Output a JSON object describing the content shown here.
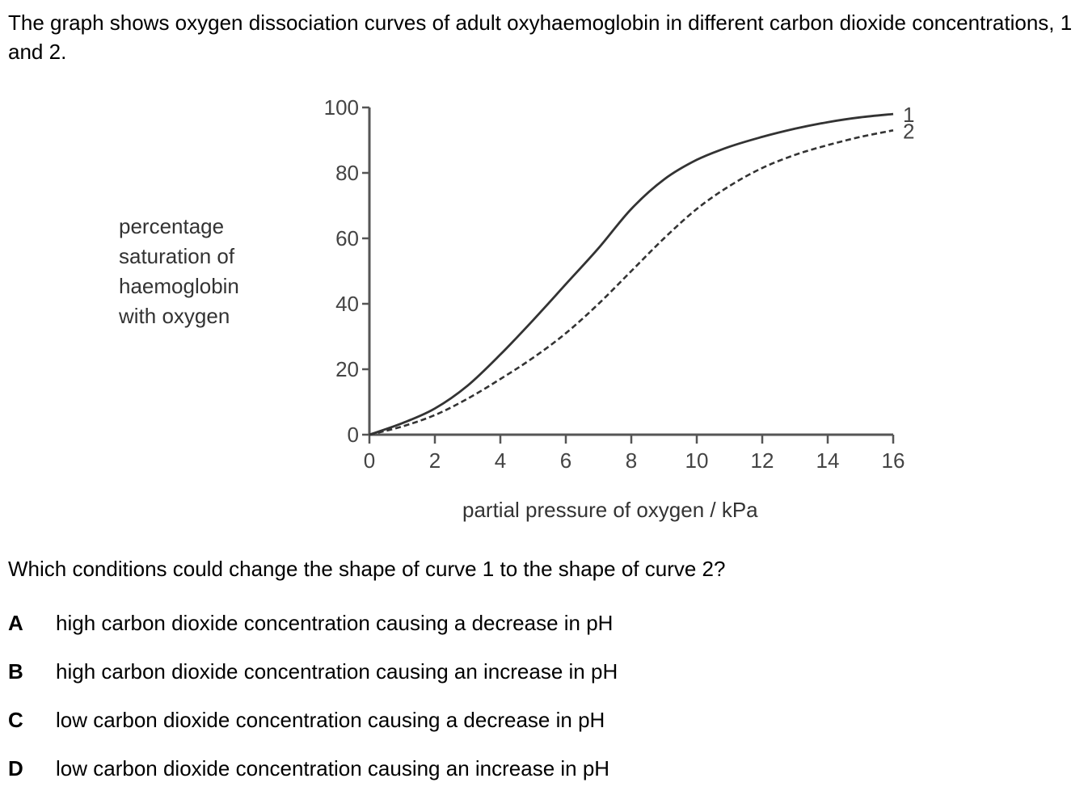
{
  "question": {
    "intro": "The graph shows oxygen dissociation curves of adult oxyhaemoglobin in different carbon dioxide concentrations, 1 and 2.",
    "prompt": "Which conditions could change the shape of curve 1 to the shape of curve 2?",
    "options": [
      {
        "letter": "A",
        "text": "high carbon dioxide concentration causing a decrease in pH"
      },
      {
        "letter": "B",
        "text": "high carbon dioxide concentration causing an increase in pH"
      },
      {
        "letter": "C",
        "text": "low carbon dioxide concentration causing a decrease in pH"
      },
      {
        "letter": "D",
        "text": "low carbon dioxide concentration causing an increase in pH"
      }
    ]
  },
  "chart_data": {
    "type": "line",
    "title": "",
    "xlabel": "partial pressure of oxygen / kPa",
    "ylabel_lines": [
      "percentage",
      "saturation of",
      "haemoglobin",
      "with oxygen"
    ],
    "xlim": [
      0,
      16
    ],
    "ylim": [
      0,
      100
    ],
    "x_ticks": [
      0,
      2,
      4,
      6,
      8,
      10,
      12,
      14,
      16
    ],
    "y_ticks": [
      0,
      20,
      40,
      60,
      80,
      100
    ],
    "grid": false,
    "series": [
      {
        "name": "1",
        "style": "solid",
        "points": [
          [
            0,
            0
          ],
          [
            1,
            3.5
          ],
          [
            2,
            8
          ],
          [
            3,
            15
          ],
          [
            4,
            24.5
          ],
          [
            5,
            35
          ],
          [
            6,
            46
          ],
          [
            7,
            57
          ],
          [
            8,
            69
          ],
          [
            9,
            78
          ],
          [
            10,
            84
          ],
          [
            11,
            88
          ],
          [
            12,
            91
          ],
          [
            13,
            93.5
          ],
          [
            14,
            95.5
          ],
          [
            15,
            97
          ],
          [
            16,
            98
          ]
        ]
      },
      {
        "name": "2",
        "style": "dashed",
        "points": [
          [
            0,
            0
          ],
          [
            1,
            2.5
          ],
          [
            2,
            6
          ],
          [
            3,
            11
          ],
          [
            4,
            17
          ],
          [
            5,
            23.5
          ],
          [
            6,
            31
          ],
          [
            7,
            40
          ],
          [
            8,
            50
          ],
          [
            9,
            60
          ],
          [
            10,
            69
          ],
          [
            11,
            76
          ],
          [
            12,
            81.5
          ],
          [
            13,
            85.5
          ],
          [
            14,
            88.5
          ],
          [
            15,
            91
          ],
          [
            16,
            93
          ]
        ]
      }
    ]
  }
}
